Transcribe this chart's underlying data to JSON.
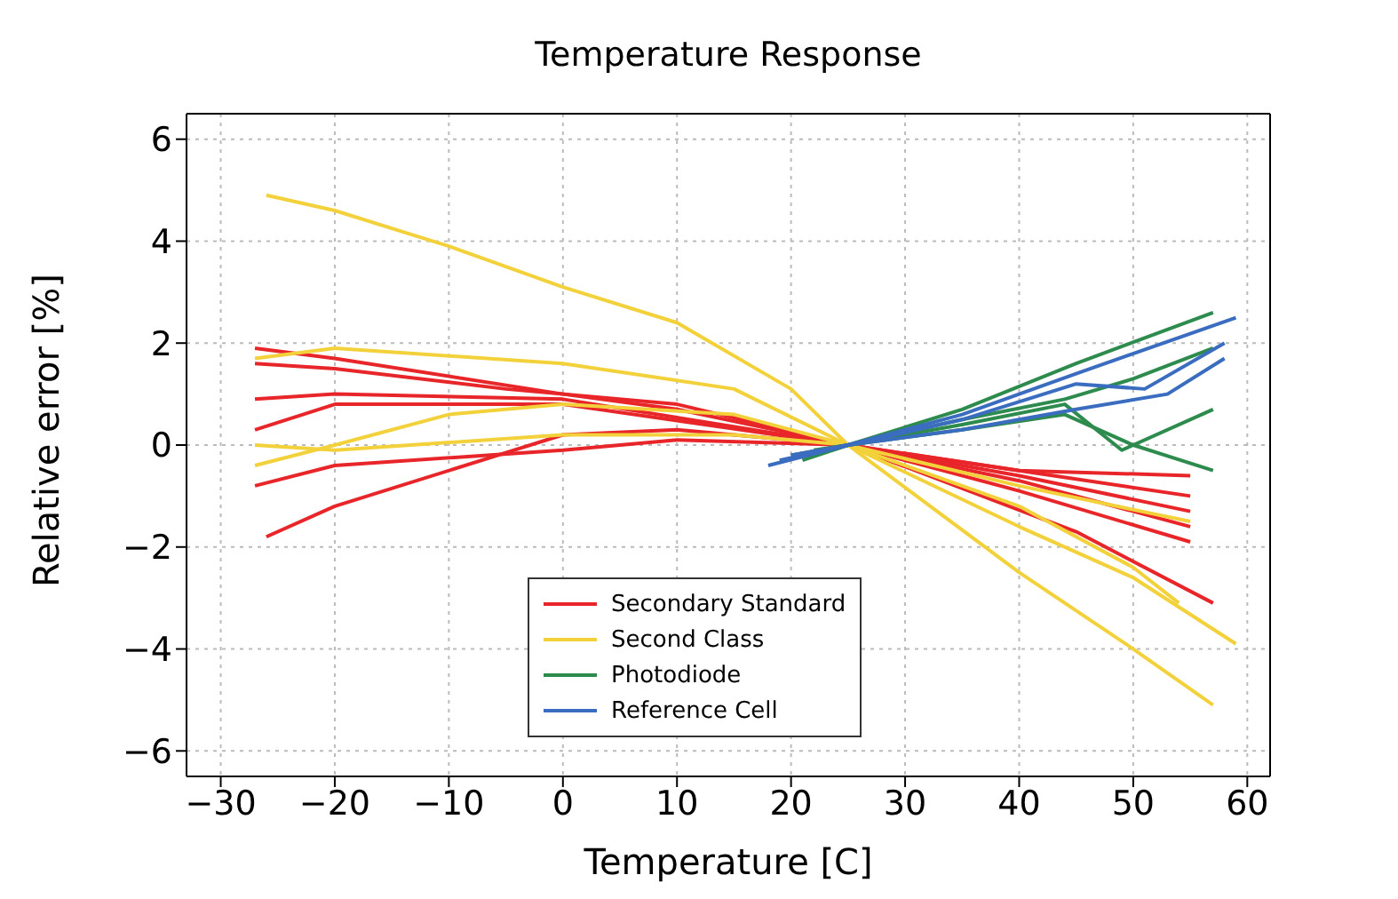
{
  "chart_data": {
    "type": "line",
    "title": "Temperature Response",
    "xlabel": "Temperature [C]",
    "ylabel": "Relative error [%]",
    "xlim": [
      -33,
      62
    ],
    "xticks": [
      {
        "value": -30,
        "label": "−30"
      },
      {
        "value": -20,
        "label": "−20"
      },
      {
        "value": -10,
        "label": "−10"
      },
      0,
      10,
      20,
      30,
      40,
      50,
      60
    ],
    "ylim": [
      -6.5,
      6.5
    ],
    "yticks": [
      {
        "value": -6,
        "label": "−6"
      },
      {
        "value": -4,
        "label": "−4"
      },
      {
        "value": -2,
        "label": "−2"
      },
      0,
      2,
      4,
      6
    ],
    "grid": true,
    "legend": "bottom",
    "line_style": "solid",
    "series": [
      {
        "name": "Secondary Standard",
        "color": "#e8262a",
        "x": [
          -27,
          -20,
          0,
          10,
          25,
          40,
          55
        ],
        "values": [
          1.9,
          1.7,
          1.0,
          0.7,
          0,
          -0.5,
          -1.0
        ]
      },
      {
        "color": "#e8262a",
        "x": [
          -27,
          -20,
          -5,
          10,
          25,
          40,
          55
        ],
        "values": [
          1.6,
          1.5,
          1.1,
          0.8,
          0,
          -0.6,
          -1.3
        ]
      },
      {
        "color": "#e8262a",
        "x": [
          -27,
          -20,
          0,
          25,
          40,
          55
        ],
        "values": [
          0.9,
          1.0,
          0.9,
          0,
          -0.7,
          -1.6
        ]
      },
      {
        "color": "#e8262a",
        "x": [
          -27,
          -20,
          0,
          25,
          40,
          55
        ],
        "values": [
          0.3,
          0.8,
          0.8,
          0,
          -0.5,
          -0.6
        ]
      },
      {
        "color": "#e8262a",
        "x": [
          -27,
          -20,
          0,
          10,
          25,
          40,
          55
        ],
        "values": [
          -0.8,
          -0.4,
          -0.1,
          0.1,
          0,
          -0.9,
          -1.9
        ]
      },
      {
        "color": "#e8262a",
        "x": [
          -26,
          -20,
          0,
          10,
          25,
          45,
          57
        ],
        "values": [
          -1.8,
          -1.2,
          0.2,
          0.3,
          0,
          -1.7,
          -3.1
        ]
      },
      {
        "name": "Second Class",
        "color": "#f2d13a",
        "x": [
          -26,
          -20,
          -10,
          0,
          10,
          20,
          25,
          40,
          50,
          57
        ],
        "values": [
          4.9,
          4.6,
          3.9,
          3.1,
          2.4,
          1.1,
          0,
          -2.5,
          -4.0,
          -5.1
        ]
      },
      {
        "color": "#f2d13a",
        "x": [
          -27,
          -20,
          0,
          15,
          25,
          40,
          50,
          59
        ],
        "values": [
          1.7,
          1.9,
          1.6,
          1.1,
          0,
          -1.6,
          -2.6,
          -3.9
        ]
      },
      {
        "color": "#f2d13a",
        "x": [
          -27,
          -20,
          -10,
          0,
          15,
          25,
          40,
          50,
          54
        ],
        "values": [
          -0.4,
          0,
          0.6,
          0.8,
          0.6,
          0,
          -1.2,
          -2.4,
          -3.1
        ]
      },
      {
        "color": "#f2d13a",
        "x": [
          -27,
          -20,
          0,
          15,
          25,
          40,
          55
        ],
        "values": [
          0,
          -0.1,
          0.2,
          0.2,
          0,
          -0.8,
          -1.5
        ]
      },
      {
        "name": "Photodiode",
        "color": "#2e8b4e",
        "x": [
          20,
          25,
          35,
          45,
          57
        ],
        "values": [
          -0.2,
          0,
          0.7,
          1.6,
          2.6
        ]
      },
      {
        "color": "#2e8b4e",
        "x": [
          21,
          25,
          35,
          44,
          50,
          57
        ],
        "values": [
          -0.3,
          0,
          0.5,
          0.9,
          1.3,
          1.9
        ]
      },
      {
        "color": "#2e8b4e",
        "x": [
          22,
          25,
          35,
          44,
          49,
          57
        ],
        "values": [
          -0.2,
          0,
          0.4,
          0.8,
          -0.1,
          0.7
        ]
      },
      {
        "color": "#2e8b4e",
        "x": [
          22,
          25,
          35,
          44,
          50,
          57
        ],
        "values": [
          -0.1,
          0,
          0.3,
          0.6,
          0,
          -0.5
        ]
      },
      {
        "name": "Reference Cell",
        "color": "#3a6cc0",
        "x": [
          18,
          25,
          35,
          45,
          59
        ],
        "values": [
          -0.4,
          0,
          0.6,
          1.4,
          2.5
        ]
      },
      {
        "color": "#3a6cc0",
        "x": [
          19,
          25,
          35,
          45,
          51,
          58
        ],
        "values": [
          -0.3,
          0,
          0.5,
          1.2,
          1.1,
          2.0
        ]
      },
      {
        "color": "#3a6cc0",
        "x": [
          20,
          25,
          35,
          45,
          53,
          58
        ],
        "values": [
          -0.2,
          0,
          0.3,
          0.7,
          1.0,
          1.7
        ]
      }
    ]
  }
}
